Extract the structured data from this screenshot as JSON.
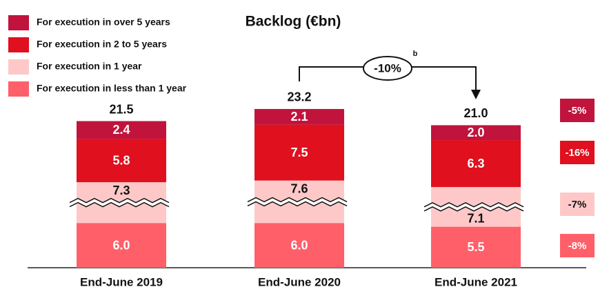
{
  "chart_data": {
    "type": "bar",
    "stacked": true,
    "title": "Backlog (€bn)",
    "categories": [
      "End-June 2019",
      "End-June 2020",
      "End-June 2021"
    ],
    "series": [
      {
        "name": "For execution in less than 1 year",
        "color": "#ff5f69",
        "values": [
          6.0,
          6.0,
          5.5
        ],
        "value_labels": [
          "6.0",
          "6.0",
          "5.5"
        ],
        "change": -8,
        "change_label": "-8%"
      },
      {
        "name": "For execution in 1 year",
        "color": "#ffc8c8",
        "values": [
          7.3,
          7.6,
          7.1
        ],
        "value_labels": [
          "7.3",
          "7.6",
          "7.1"
        ],
        "change": -7,
        "change_label": "-7%"
      },
      {
        "name": "For execution in 2 to 5 years",
        "color": "#e0101e",
        "values": [
          5.8,
          7.5,
          6.3
        ],
        "value_labels": [
          "5.8",
          "7.5",
          "6.3"
        ],
        "change": -16,
        "change_label": "-16%"
      },
      {
        "name": "For execution in over 5 years",
        "color": "#c0143c",
        "values": [
          2.4,
          2.1,
          2.0
        ],
        "value_labels": [
          "2.4",
          "2.1",
          "2.0"
        ],
        "change": -5,
        "change_label": "-5%"
      }
    ],
    "totals": [
      21.5,
      23.2,
      21.0
    ],
    "total_labels": [
      "21.5",
      "23.2",
      "21.0"
    ],
    "annotation": {
      "value": -10,
      "label": "-10%",
      "footnote": "b"
    }
  }
}
